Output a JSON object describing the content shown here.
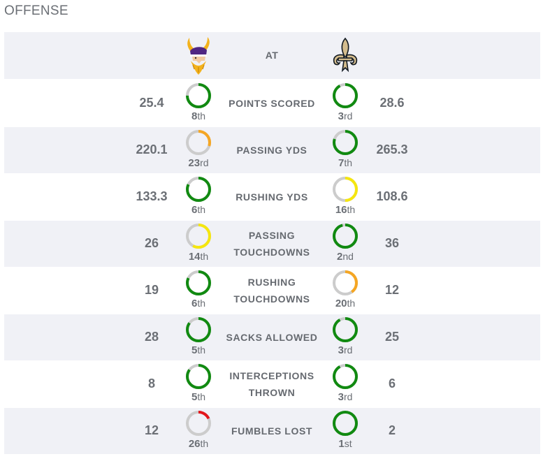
{
  "section_title": "OFFENSE",
  "header": {
    "at_label": "AT",
    "away_logo": "vikings-logo",
    "home_logo": "saints-fleur-de-lis-logo"
  },
  "colors": {
    "green": "#118a11",
    "orange": "#f5a623",
    "yellow": "#f5e60f",
    "red": "#e3161b",
    "track": "#cccccc"
  },
  "rows": [
    {
      "label_lines": [
        "POINTS SCORED"
      ],
      "away_value": "25.4",
      "away_rank": "8",
      "away_suffix": "th",
      "away_fill": 0.75,
      "away_color": "#118a11",
      "home_value": "28.6",
      "home_rank": "3",
      "home_suffix": "rd",
      "home_fill": 0.92,
      "home_color": "#118a11"
    },
    {
      "label_lines": [
        "PASSING YDS"
      ],
      "away_value": "220.1",
      "away_rank": "23",
      "away_suffix": "rd",
      "away_fill": 0.3,
      "away_color": "#f5a623",
      "home_value": "265.3",
      "home_rank": "7",
      "home_suffix": "th",
      "home_fill": 0.8,
      "home_color": "#118a11"
    },
    {
      "label_lines": [
        "RUSHING YDS"
      ],
      "away_value": "133.3",
      "away_rank": "6",
      "away_suffix": "th",
      "away_fill": 0.82,
      "away_color": "#118a11",
      "home_value": "108.6",
      "home_rank": "16",
      "home_suffix": "th",
      "home_fill": 0.5,
      "home_color": "#f5e60f"
    },
    {
      "label_lines": [
        "PASSING",
        "TOUCHDOWNS"
      ],
      "away_value": "26",
      "away_rank": "14",
      "away_suffix": "th",
      "away_fill": 0.58,
      "away_color": "#f5e60f",
      "home_value": "36",
      "home_rank": "2",
      "home_suffix": "nd",
      "home_fill": 0.96,
      "home_color": "#118a11"
    },
    {
      "label_lines": [
        "RUSHING",
        "TOUCHDOWNS"
      ],
      "away_value": "19",
      "away_rank": "6",
      "away_suffix": "th",
      "away_fill": 0.82,
      "away_color": "#118a11",
      "home_value": "12",
      "home_rank": "20",
      "home_suffix": "th",
      "home_fill": 0.4,
      "home_color": "#f5a623"
    },
    {
      "label_lines": [
        "SACKS ALLOWED"
      ],
      "away_value": "28",
      "away_rank": "5",
      "away_suffix": "th",
      "away_fill": 0.85,
      "away_color": "#118a11",
      "home_value": "25",
      "home_rank": "3",
      "home_suffix": "rd",
      "home_fill": 0.92,
      "home_color": "#118a11"
    },
    {
      "label_lines": [
        "INTERCEPTIONS",
        "THROWN"
      ],
      "away_value": "8",
      "away_rank": "5",
      "away_suffix": "th",
      "away_fill": 0.85,
      "away_color": "#118a11",
      "home_value": "6",
      "home_rank": "3",
      "home_suffix": "rd",
      "home_fill": 0.92,
      "home_color": "#118a11"
    },
    {
      "label_lines": [
        "FUMBLES LOST"
      ],
      "away_value": "12",
      "away_rank": "26",
      "away_suffix": "th",
      "away_fill": 0.18,
      "away_color": "#e3161b",
      "home_value": "2",
      "home_rank": "1",
      "home_suffix": "st",
      "home_fill": 1.0,
      "home_color": "#118a11"
    }
  ]
}
